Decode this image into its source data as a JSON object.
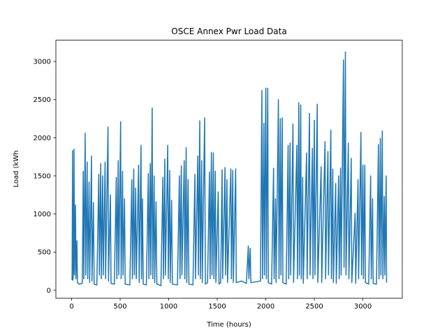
{
  "chart_data": {
    "type": "line",
    "title": "OSCE Annex Pwr Load Data",
    "x_label": "Time (hours)",
    "y_label": "Load (kWh",
    "color": "#1f77b4",
    "x": [
      0,
      5,
      10,
      14,
      20,
      25,
      30,
      40,
      45,
      55,
      60,
      80,
      110,
      120,
      126,
      140,
      146,
      160,
      166,
      180,
      186,
      205,
      210,
      225,
      232,
      260,
      280,
      286,
      300,
      306,
      320,
      326,
      345,
      350,
      375,
      380,
      400,
      406,
      440,
      460,
      466,
      480,
      486,
      505,
      510,
      525,
      530,
      545,
      552,
      600,
      620,
      626,
      640,
      646,
      660,
      666,
      690,
      696,
      715,
      720,
      730,
      738,
      770,
      790,
      796,
      810,
      816,
      830,
      836,
      850,
      856,
      870,
      878,
      920,
      940,
      946,
      960,
      966,
      990,
      996,
      1010,
      1016,
      1030,
      1038,
      1090,
      1110,
      1116,
      1130,
      1136,
      1160,
      1166,
      1180,
      1186,
      1200,
      1208,
      1250,
      1270,
      1276,
      1300,
      1306,
      1320,
      1326,
      1340,
      1346,
      1370,
      1378,
      1400,
      1420,
      1426,
      1440,
      1446,
      1460,
      1466,
      1480,
      1486,
      1510,
      1518,
      1535,
      1550,
      1556,
      1580,
      1586,
      1600,
      1606,
      1640,
      1646,
      1660,
      1666,
      1690,
      1696,
      1750,
      1800,
      1820,
      1826,
      1840,
      1846,
      1900,
      1945,
      1960,
      1966,
      1980,
      1986,
      2000,
      2006,
      2020,
      2026,
      2060,
      2080,
      2086,
      2100,
      2106,
      2130,
      2136,
      2150,
      2156,
      2170,
      2176,
      2210,
      2230,
      2236,
      2250,
      2256,
      2280,
      2286,
      2320,
      2326,
      2340,
      2346,
      2360,
      2366,
      2380,
      2386,
      2420,
      2426,
      2450,
      2456,
      2480,
      2486,
      2500,
      2506,
      2530,
      2536,
      2570,
      2576,
      2610,
      2616,
      2640,
      2646,
      2670,
      2676,
      2690,
      2696,
      2720,
      2726,
      2750,
      2756,
      2770,
      2776,
      2800,
      2806,
      2820,
      2826,
      2850,
      2856,
      2880,
      2886,
      2920,
      2926,
      2950,
      2956,
      2980,
      2986,
      3000,
      3006,
      3020,
      3026,
      3060,
      3080,
      3086,
      3100,
      3106,
      3140,
      3160,
      3166,
      3180,
      3186,
      3200,
      3206,
      3220,
      3226,
      3240,
      3244
    ],
    "values": [
      150,
      140,
      1830,
      130,
      300,
      1850,
      200,
      1120,
      150,
      650,
      100,
      80,
      90,
      1560,
      150,
      2060,
      200,
      1680,
      150,
      1420,
      100,
      1760,
      120,
      1150,
      80,
      70,
      1520,
      200,
      1660,
      150,
      1500,
      200,
      1680,
      150,
      2140,
      120,
      1250,
      90,
      80,
      1480,
      150,
      1700,
      200,
      2210,
      150,
      1560,
      200,
      1200,
      80,
      70,
      1450,
      150,
      1590,
      200,
      1340,
      150,
      1640,
      100,
      1900,
      150,
      1200,
      80,
      70,
      1530,
      150,
      1660,
      200,
      2390,
      150,
      1500,
      100,
      1160,
      80,
      60,
      1480,
      150,
      1720,
      200,
      1900,
      150,
      1570,
      100,
      1180,
      80,
      70,
      1500,
      150,
      1630,
      200,
      1700,
      150,
      1870,
      100,
      1450,
      80,
      70,
      1520,
      150,
      1760,
      200,
      2220,
      150,
      1700,
      100,
      2260,
      80,
      100,
      1550,
      150,
      1810,
      200,
      1800,
      150,
      1560,
      100,
      1290,
      80,
      100,
      1580,
      150,
      1610,
      200,
      1450,
      100,
      1590,
      150,
      1570,
      100,
      1590,
      100,
      120,
      90,
      580,
      150,
      550,
      100,
      110,
      120,
      2620,
      150,
      2190,
      200,
      2650,
      150,
      2650,
      100,
      80,
      1600,
      150,
      1200,
      100,
      2500,
      150,
      2250,
      200,
      2260,
      100,
      80,
      1900,
      150,
      1930,
      200,
      2180,
      100,
      1900,
      150,
      2460,
      200,
      2430,
      150,
      1480,
      90,
      1800,
      150,
      2320,
      200,
      1860,
      150,
      2230,
      200,
      2440,
      100,
      1620,
      100,
      1950,
      150,
      1820,
      200,
      2100,
      150,
      1590,
      100,
      1400,
      90,
      1500,
      150,
      1600,
      200,
      3020,
      300,
      3125,
      200,
      1930,
      150,
      1730,
      100,
      1010,
      90,
      1450,
      150,
      2070,
      200,
      1640,
      150,
      1640,
      100,
      80,
      1500,
      150,
      1200,
      90,
      80,
      1910,
      150,
      1990,
      200,
      2090,
      150,
      1230,
      200,
      1500,
      100
    ],
    "xlim": [
      -162,
      3406
    ],
    "ylim": [
      -104,
      3279
    ],
    "xticks": [
      0,
      500,
      1000,
      1500,
      2000,
      2500,
      3000
    ],
    "yticks": [
      0,
      500,
      1000,
      1500,
      2000,
      2500,
      3000
    ]
  }
}
